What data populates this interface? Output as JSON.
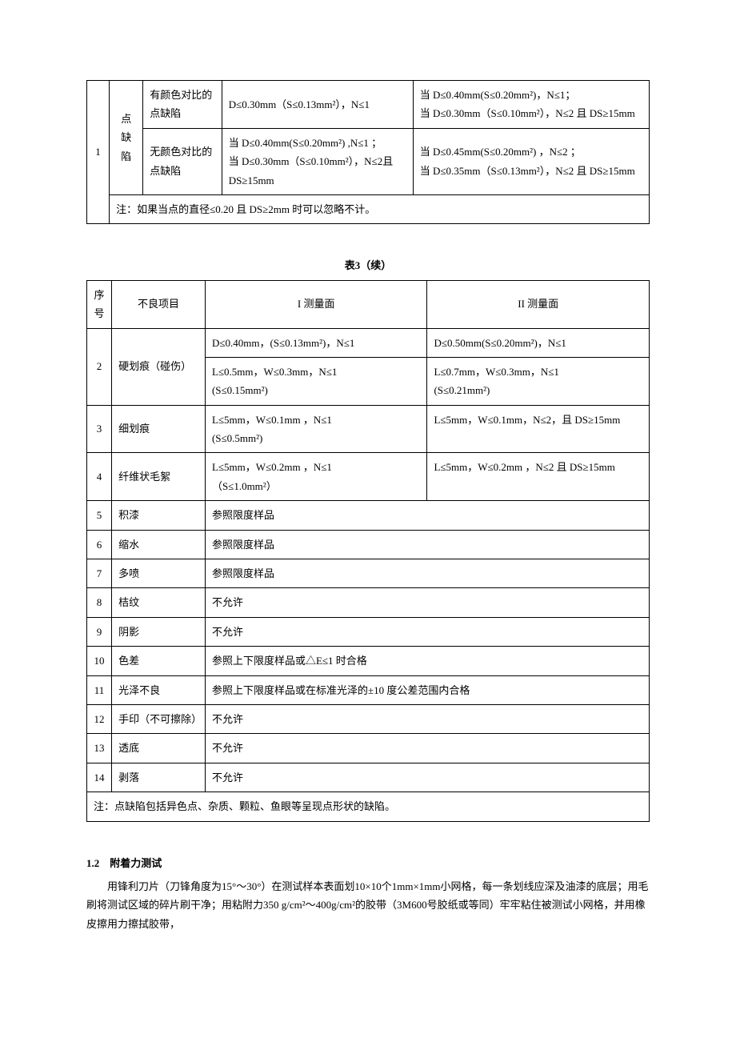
{
  "table1": {
    "seq": "1",
    "category": "点缺陷",
    "rows": [
      {
        "sub": "有颜色对比的点缺陷",
        "i": "D≤0.30mm（S≤0.13mm²），N≤1",
        "ii": "当 D≤0.40mm(S≤0.20mm²)，N≤1；\n当 D≤0.30mm（S≤0.10mm²），N≤2 且 DS≥15mm"
      },
      {
        "sub": "无颜色对比的点缺陷",
        "i": "当 D≤0.40mm(S≤0.20mm²) ,N≤1 ；\n当 D≤0.30mm（S≤0.10mm²），N≤2且 DS≥15mm",
        "ii": "当 D≤0.45mm(S≤0.20mm²) ，N≤2 ；\n当 D≤0.35mm（S≤0.13mm²），N≤2 且 DS≥15mm"
      }
    ],
    "note": "注：如果当点的直径≤0.20 且 DS≥2mm 时可以忽略不计。"
  },
  "table2": {
    "title": "表3（续）",
    "header": {
      "seq": "序号",
      "item": "不良项目",
      "i": "I 测量面",
      "ii": "II 测量面"
    },
    "rows": [
      {
        "seq": "2",
        "item": "硬划痕（碰伤）",
        "sub": [
          {
            "i": "D≤0.40mm，(S≤0.13mm²)，N≤1",
            "ii": "D≤0.50mm(S≤0.20mm²)，N≤1"
          },
          {
            "i": "L≤0.5mm，W≤0.3mm，N≤1\n(S≤0.15mm²)",
            "ii": "L≤0.7mm，W≤0.3mm，N≤1\n(S≤0.21mm²)"
          }
        ]
      },
      {
        "seq": "3",
        "item": "细划痕",
        "sub": [
          {
            "i": "L≤5mm，W≤0.1mm ，N≤1\n(S≤0.5mm²)",
            "ii": "L≤5mm，W≤0.1mm，N≤2，且 DS≥15mm"
          }
        ]
      },
      {
        "seq": "4",
        "item": "纤维状毛絮",
        "sub": [
          {
            "i": "L≤5mm，W≤0.2mm ，N≤1\n（S≤1.0mm²）",
            "ii": "L≤5mm，W≤0.2mm ，N≤2 且 DS≥15mm"
          }
        ]
      },
      {
        "seq": "5",
        "item": "积漆",
        "merged": "参照限度样品"
      },
      {
        "seq": "6",
        "item": "缩水",
        "merged": "参照限度样品"
      },
      {
        "seq": "7",
        "item": "多喷",
        "merged": "参照限度样品"
      },
      {
        "seq": "8",
        "item": "桔纹",
        "merged": "不允许"
      },
      {
        "seq": "9",
        "item": "阴影",
        "merged": "不允许"
      },
      {
        "seq": "10",
        "item": "色差",
        "merged": "参照上下限度样品或△E≤1 时合格"
      },
      {
        "seq": "11",
        "item": "光泽不良",
        "merged": "参照上下限度样品或在标准光泽的±10 度公差范围内合格"
      },
      {
        "seq": "12",
        "item": "手印（不可擦除）",
        "merged": "不允许"
      },
      {
        "seq": "13",
        "item": "透底",
        "merged": "不允许"
      },
      {
        "seq": "14",
        "item": "剥落",
        "merged": "不允许"
      }
    ],
    "note": "注：点缺陷包括异色点、杂质、颗粒、鱼眼等呈现点形状的缺陷。"
  },
  "section12": {
    "heading": "1.2　附着力测试",
    "body": "用锋利刀片（刀锋角度为15°～30°）在测试样本表面划10×10个1mm×1mm小网格，每一条划线应深及油漆的底层；用毛刷将测试区域的碎片刷干净；用粘附力350 g/cm²～400g/cm²的胶带（3M600号胶纸或等同）牢牢粘住被测试小网格，并用橡皮擦用力擦拭胶带，"
  }
}
